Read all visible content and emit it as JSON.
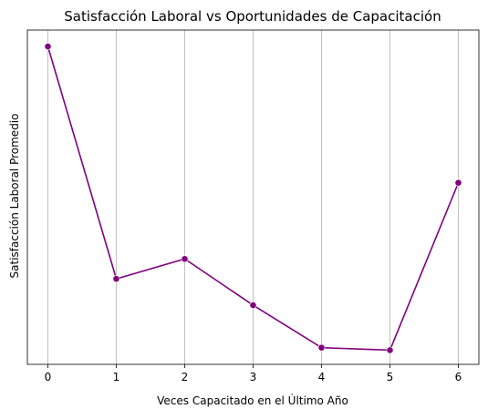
{
  "chart_data": {
    "type": "line",
    "title": "Satisfacción Laboral vs Oportunidades de Capacitación",
    "xlabel": "Veces Capacitado en el Último Año",
    "ylabel": "Satisfacción Laboral Promedio",
    "x": [
      0,
      1,
      2,
      3,
      4,
      5,
      6
    ],
    "xticks": [
      "0",
      "1",
      "2",
      "3",
      "4",
      "5",
      "6"
    ],
    "series": [
      {
        "values": [
          0.989,
          0.266,
          0.328,
          0.184,
          0.052,
          0.044,
          0.565
        ]
      }
    ],
    "xlim": [
      -0.3,
      6.3
    ],
    "ylim": [
      0,
      1.04
    ],
    "grid": "vertical",
    "y_tick_labels_shown": false,
    "line_color": "#800080",
    "marker": "circle"
  }
}
